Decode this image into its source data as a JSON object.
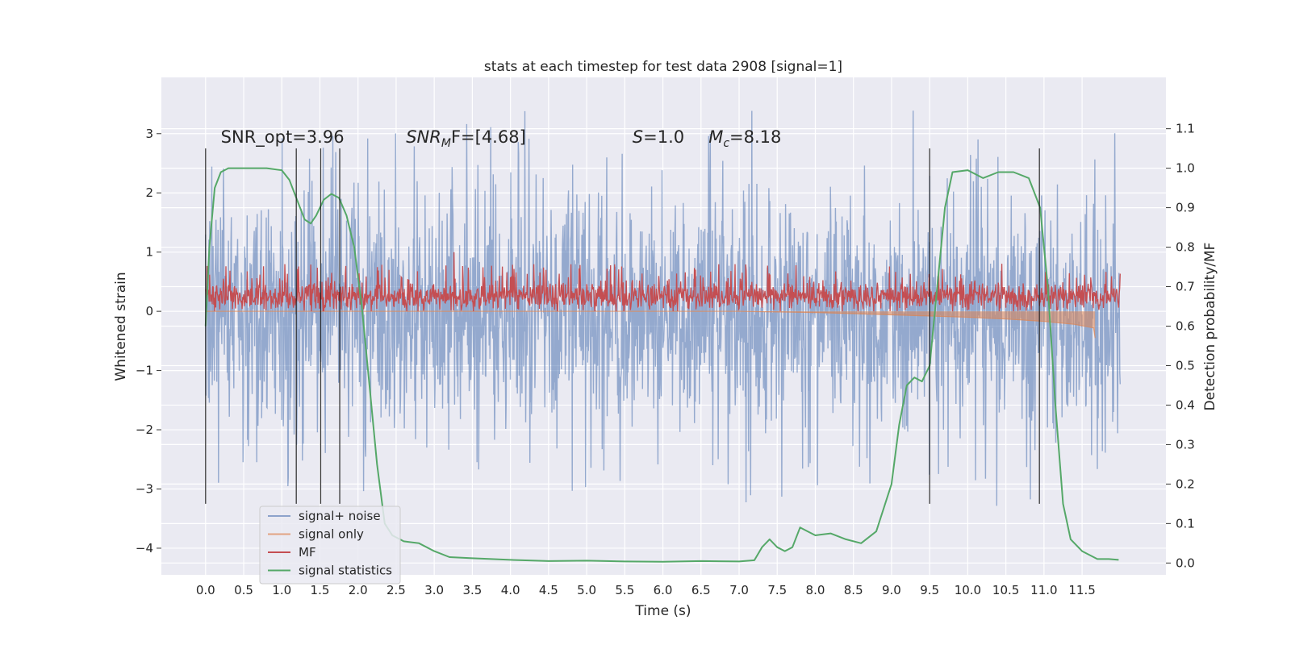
{
  "chart_data": {
    "type": "line",
    "title": "stats at each timestep for test data 2908 [signal=1]",
    "xlabel": "Time (s)",
    "ylabel": "Whitened strain",
    "y2label": "Detection probability/MF",
    "xlim": [
      -0.58,
      12.6
    ],
    "ylim": [
      -4.45,
      3.95
    ],
    "y2lim": [
      -0.03,
      1.23
    ],
    "xticks": [
      0.0,
      0.5,
      1.0,
      1.5,
      2.0,
      2.5,
      3.0,
      3.5,
      4.0,
      4.5,
      5.0,
      5.5,
      6.0,
      6.5,
      7.0,
      7.5,
      8.0,
      8.5,
      9.0,
      9.5,
      10.0,
      10.5,
      11.0,
      11.5
    ],
    "xtick_labels": [
      "0.0",
      "0.5",
      "1.0",
      "1.5",
      "2.0",
      "2.5",
      "3.0",
      "3.5",
      "4.0",
      "4.5",
      "5.0",
      "5.5",
      "6.0",
      "6.5",
      "7.0",
      "7.5",
      "8.0",
      "8.5",
      "9.0",
      "9.5",
      "10.0",
      "10.5",
      "11.0",
      "11.5"
    ],
    "yticks": [
      -4,
      -3,
      -2,
      -1,
      0,
      1,
      2,
      3
    ],
    "ytick_labels": [
      "−4",
      "−3",
      "−2",
      "−1",
      "0",
      "1",
      "2",
      "3"
    ],
    "y2ticks": [
      0.0,
      0.1,
      0.2,
      0.3,
      0.4,
      0.5,
      0.6,
      0.7,
      0.8,
      0.9,
      1.0,
      1.1
    ],
    "y2tick_labels": [
      "0.0",
      "0.1",
      "0.2",
      "0.3",
      "0.4",
      "0.5",
      "0.6",
      "0.7",
      "0.8",
      "0.9",
      "1.0",
      "1.1"
    ],
    "grid": true,
    "legend_position": "lower-left",
    "series": [
      {
        "name": "signal+ noise",
        "color": "#4c72b0",
        "axis": "left",
        "style": "dense-noise",
        "x_range": [
          0.0,
          12.0
        ],
        "envelope_typical": [
          -1.8,
          1.8
        ],
        "peaks": {
          "max": 3.6,
          "min": -4.1
        }
      },
      {
        "name": "signal only",
        "color": "#dd8452",
        "axis": "left",
        "style": "chirp-band",
        "points": [
          [
            0.0,
            0.0
          ],
          [
            7.0,
            0.0
          ],
          [
            8.0,
            -0.02
          ],
          [
            9.0,
            -0.06
          ],
          [
            10.0,
            -0.1
          ],
          [
            10.5,
            -0.13
          ],
          [
            11.0,
            -0.17
          ],
          [
            11.4,
            -0.22
          ],
          [
            11.65,
            -0.28
          ],
          [
            11.67,
            -0.45
          ]
        ]
      },
      {
        "name": "MF",
        "color": "#c44e52",
        "axis": "left",
        "style": "band",
        "x_range": [
          0.0,
          12.0
        ],
        "typical_range": [
          0.0,
          0.5
        ],
        "peaks": {
          "max": 1.0
        }
      },
      {
        "name": "signal statistics",
        "color": "#55a868",
        "axis": "right",
        "points": [
          [
            0.0,
            0.6
          ],
          [
            0.05,
            0.8
          ],
          [
            0.12,
            0.95
          ],
          [
            0.2,
            0.99
          ],
          [
            0.3,
            1.0
          ],
          [
            0.5,
            1.0
          ],
          [
            0.8,
            1.0
          ],
          [
            1.0,
            0.995
          ],
          [
            1.1,
            0.97
          ],
          [
            1.2,
            0.92
          ],
          [
            1.3,
            0.87
          ],
          [
            1.38,
            0.86
          ],
          [
            1.45,
            0.88
          ],
          [
            1.55,
            0.92
          ],
          [
            1.65,
            0.935
          ],
          [
            1.75,
            0.925
          ],
          [
            1.85,
            0.88
          ],
          [
            1.95,
            0.8
          ],
          [
            2.05,
            0.65
          ],
          [
            2.15,
            0.45
          ],
          [
            2.25,
            0.25
          ],
          [
            2.35,
            0.1
          ],
          [
            2.45,
            0.07
          ],
          [
            2.6,
            0.055
          ],
          [
            2.8,
            0.05
          ],
          [
            3.0,
            0.03
          ],
          [
            3.2,
            0.015
          ],
          [
            3.5,
            0.012
          ],
          [
            4.0,
            0.008
          ],
          [
            4.5,
            0.005
          ],
          [
            5.0,
            0.006
          ],
          [
            5.5,
            0.004
          ],
          [
            6.0,
            0.003
          ],
          [
            6.5,
            0.005
          ],
          [
            7.0,
            0.004
          ],
          [
            7.2,
            0.007
          ],
          [
            7.3,
            0.04
          ],
          [
            7.4,
            0.06
          ],
          [
            7.5,
            0.04
          ],
          [
            7.6,
            0.03
          ],
          [
            7.7,
            0.04
          ],
          [
            7.8,
            0.09
          ],
          [
            7.9,
            0.08
          ],
          [
            8.0,
            0.07
          ],
          [
            8.2,
            0.075
          ],
          [
            8.4,
            0.06
          ],
          [
            8.6,
            0.05
          ],
          [
            8.8,
            0.08
          ],
          [
            9.0,
            0.2
          ],
          [
            9.1,
            0.35
          ],
          [
            9.2,
            0.45
          ],
          [
            9.3,
            0.47
          ],
          [
            9.4,
            0.46
          ],
          [
            9.5,
            0.5
          ],
          [
            9.6,
            0.7
          ],
          [
            9.7,
            0.9
          ],
          [
            9.8,
            0.99
          ],
          [
            10.0,
            0.995
          ],
          [
            10.2,
            0.975
          ],
          [
            10.4,
            0.99
          ],
          [
            10.6,
            0.99
          ],
          [
            10.8,
            0.975
          ],
          [
            10.95,
            0.9
          ],
          [
            11.05,
            0.7
          ],
          [
            11.15,
            0.4
          ],
          [
            11.25,
            0.15
          ],
          [
            11.35,
            0.06
          ],
          [
            11.5,
            0.03
          ],
          [
            11.7,
            0.01
          ],
          [
            11.85,
            0.01
          ],
          [
            11.98,
            0.008
          ]
        ]
      }
    ],
    "vlines": {
      "color": "#1a1a1a",
      "ymin": -3.25,
      "ymax": 2.75,
      "x": [
        0.0,
        1.19,
        1.51,
        1.76,
        9.5,
        10.94
      ]
    },
    "annotations": [
      {
        "id": "snr-opt",
        "text": "SNR_opt=3.96",
        "x": 0.2,
        "y": 2.85
      },
      {
        "id": "snr-mf",
        "text_main": "SNR",
        "text_sub": "M",
        "text_rest": "F=[4.68]",
        "x": 2.63,
        "y": 2.85
      },
      {
        "id": "s",
        "text_italic": "S",
        "text_rest": "=1.0",
        "x": 5.6,
        "y": 2.85
      },
      {
        "id": "mc",
        "text_main": "M",
        "text_sub": "c",
        "text_rest": "=8.18",
        "x": 6.6,
        "y": 2.85
      }
    ]
  }
}
